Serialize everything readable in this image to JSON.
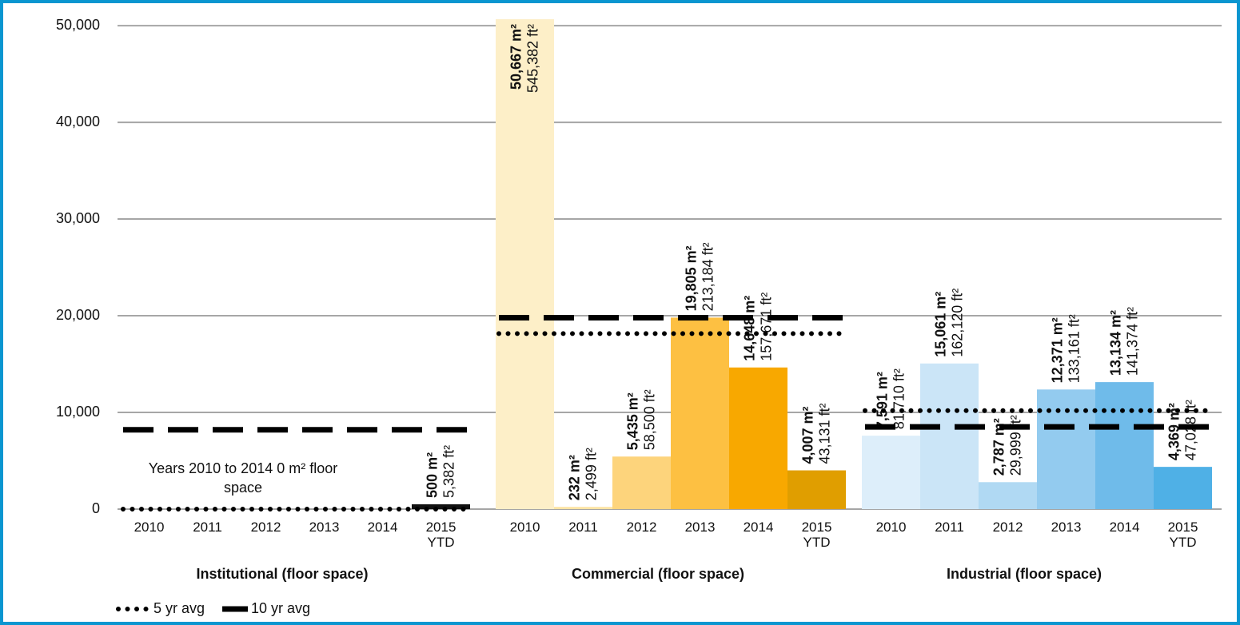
{
  "chart_data": {
    "type": "grouped_bar",
    "ylim": [
      0,
      51000
    ],
    "yticks": [
      {
        "value": 0,
        "label": "0"
      },
      {
        "value": 10000,
        "label": "10,000"
      },
      {
        "value": 20000,
        "label": "20,000"
      },
      {
        "value": 30000,
        "label": "30,000"
      },
      {
        "value": 40000,
        "label": "40,000"
      },
      {
        "value": 50000,
        "label": "50,000"
      }
    ],
    "grid": true,
    "groups": [
      {
        "name": "Institutional (floor space)",
        "categories": [
          "2010",
          "2011",
          "2012",
          "2013",
          "2014",
          "2015\nYTD"
        ],
        "values": [
          0,
          0,
          0,
          0,
          0,
          500
        ],
        "value_labels": [
          null,
          null,
          null,
          null,
          null,
          "500 m²"
        ],
        "ft_labels": [
          null,
          null,
          null,
          null,
          null,
          "5,382 ft²"
        ],
        "colors": [
          "#111111",
          "#111111",
          "#111111",
          "#111111",
          "#111111",
          "#111111"
        ]
      },
      {
        "name": "Commercial (floor space)",
        "categories": [
          "2010",
          "2011",
          "2012",
          "2013",
          "2014",
          "2015\nYTD"
        ],
        "values": [
          50667,
          232,
          5435,
          19805,
          14648,
          4007
        ],
        "value_labels": [
          "50,667 m²",
          "232 m²",
          "5,435 m²",
          "19,805 m²",
          "14,648 m²",
          "4,007 m²"
        ],
        "ft_labels": [
          "545,382 ft²",
          "2,499 ft²",
          "58,500 ft²",
          "213,184 ft²",
          "157,671 ft²",
          "43,131 ft²"
        ],
        "colors": [
          "#fdefc8",
          "#fde4a5",
          "#fdd47c",
          "#fdc042",
          "#f8a800",
          "#e09e00"
        ]
      },
      {
        "name": "Industrial (floor space)",
        "categories": [
          "2010",
          "2011",
          "2012",
          "2013",
          "2014",
          "2015\nYTD"
        ],
        "values": [
          7591,
          15061,
          2787,
          12371,
          13134,
          4369
        ],
        "value_labels": [
          "7,591 m²",
          "15,061 m²",
          "2,787 m²",
          "12,371 m²",
          "13,134 m²",
          "4,369 m²"
        ],
        "ft_labels": [
          "81,710 ft²",
          "162,120 ft²",
          "29,999 ft²",
          "133,161 ft²",
          "141,374 ft²",
          "47,028 ft²"
        ],
        "colors": [
          "#ddeefa",
          "#cbe5f7",
          "#b0d9f3",
          "#93cbef",
          "#6fbbea",
          "#4fb0e6"
        ]
      }
    ],
    "series": [
      {
        "name": "5 yr avg",
        "style": "dotted",
        "color": "#000000",
        "values": [
          0,
          18157,
          10189
        ]
      },
      {
        "name": "10 yr avg",
        "style": "dashed",
        "color": "#000000",
        "values": [
          8200,
          19800,
          8500
        ]
      }
    ],
    "annotation": "Years 2010 to 2014 0 m² floor space"
  }
}
